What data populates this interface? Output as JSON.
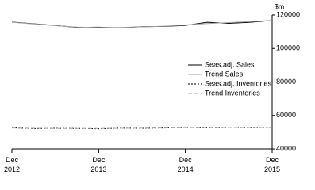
{
  "chart_data": {
    "type": "line",
    "y_unit": "$m",
    "categories": [
      "Dec 2012",
      null,
      null,
      null,
      "Dec 2013",
      null,
      null,
      null,
      "Dec 2014",
      null,
      null,
      null,
      "Dec 2015"
    ],
    "series": [
      {
        "name": "Seas.adj. Sales",
        "color": "#000000",
        "style": "solid",
        "values": [
          115800,
          114800,
          113700,
          112600,
          112700,
          112300,
          113000,
          113200,
          113800,
          115700,
          115000,
          115700,
          116800
        ]
      },
      {
        "name": "Trend Sales",
        "color": "#a6a6a6",
        "style": "solid",
        "values": [
          115700,
          114700,
          113600,
          112800,
          112500,
          112600,
          112900,
          113300,
          114100,
          114900,
          115500,
          116100,
          116800
        ]
      },
      {
        "name": "Seas.adj. Inventories",
        "color": "#000000",
        "style": "dotted",
        "values": [
          52600,
          52100,
          52300,
          52200,
          52000,
          52400,
          52300,
          52500,
          52800,
          52600,
          52800,
          52700,
          52900
        ]
      },
      {
        "name": "Trend Inventories",
        "color": "#a6a6a6",
        "style": "dashed",
        "values": [
          52500,
          52300,
          52200,
          52200,
          52200,
          52300,
          52400,
          52600,
          52700,
          52700,
          52800,
          52800,
          52900
        ]
      }
    ],
    "ylim": [
      40000,
      120000
    ],
    "yticks": [
      40000,
      60000,
      80000,
      100000,
      120000
    ],
    "y_axis_side": "right",
    "grid": false
  }
}
